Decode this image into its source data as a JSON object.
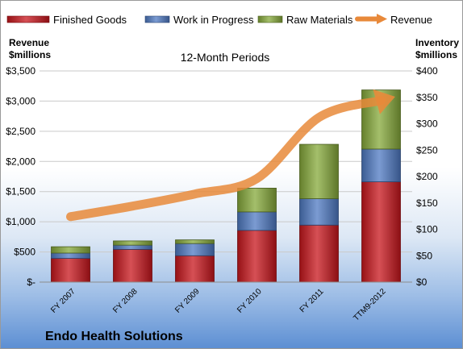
{
  "chart_data": {
    "type": "bar",
    "stacked": true,
    "subtitle": "12-Month Periods",
    "company": "Endo Health Solutions",
    "left_axis_title": [
      "Revenue",
      "$millions"
    ],
    "right_axis_title": [
      "Inventory",
      "$millions"
    ],
    "categories": [
      "FY 2007",
      "FY 2008",
      "FY 2009",
      "FY 2010",
      "FY 2011",
      "TTM9-2012"
    ],
    "series": [
      {
        "name": "Finished Goods",
        "axis": "right",
        "color": "#c8161c",
        "values": [
          45,
          62,
          50,
          98,
          108,
          190
        ]
      },
      {
        "name": "Work in Progress",
        "axis": "right",
        "color": "#4f7ac3",
        "values": [
          10,
          8,
          23,
          35,
          50,
          62
        ]
      },
      {
        "name": "Raw Materials",
        "axis": "right",
        "color": "#86a93a",
        "values": [
          12,
          8,
          7,
          45,
          103,
          112
        ]
      }
    ],
    "line_series": {
      "name": "Revenue",
      "axis": "left",
      "color": "#e8893a",
      "values": [
        1085,
        1260,
        1460,
        1716,
        2730,
        3010
      ]
    },
    "left_ylim": [
      0,
      3500
    ],
    "left_ticks": [
      "$-",
      "$500",
      "$1,000",
      "$1,500",
      "$2,000",
      "$2,500",
      "$3,000",
      "$3,500"
    ],
    "right_ylim": [
      0,
      400
    ],
    "right_ticks": [
      "$0",
      "$50",
      "$100",
      "$150",
      "$200",
      "$250",
      "$300",
      "$350",
      "$400"
    ],
    "legend_position": "top",
    "grid": true
  }
}
